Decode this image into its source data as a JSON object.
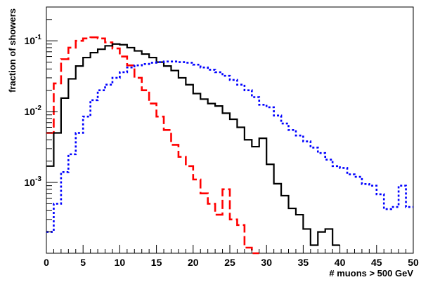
{
  "chart_data": {
    "type": "line",
    "style": "step-histogram",
    "xlabel": "# muons > 500 GeV",
    "ylabel": "fraction of showers",
    "xlim": [
      0,
      50
    ],
    "ylim": [
      0.0001,
      0.3
    ],
    "yscale": "log",
    "grid": false,
    "legend": "none",
    "x_ticks": [
      "0",
      "5",
      "10",
      "15",
      "20",
      "25",
      "30",
      "35",
      "40",
      "45",
      "50"
    ],
    "y_ticks": [
      {
        "base": "10",
        "exp": "-1",
        "value": 0.1
      },
      {
        "base": "10",
        "exp": "-2",
        "value": 0.01
      },
      {
        "base": "10",
        "exp": "-3",
        "value": 0.001
      }
    ],
    "series": [
      {
        "color": "#ff0000",
        "linestyle": "dashed",
        "x": [
          0,
          1,
          2,
          3,
          4,
          5,
          6,
          7,
          8,
          9,
          10,
          11,
          12,
          13,
          14,
          15,
          16,
          17,
          18,
          19,
          20,
          21,
          22,
          23,
          24,
          25,
          26,
          27,
          28
        ],
        "values": [
          0.005,
          0.025,
          0.055,
          0.08,
          0.1,
          0.108,
          0.112,
          0.108,
          0.095,
          0.078,
          0.06,
          0.045,
          0.03,
          0.02,
          0.013,
          0.0085,
          0.0055,
          0.0034,
          0.0023,
          0.0017,
          0.0011,
          0.0007,
          0.0005,
          0.00035,
          0.0008,
          0.0003,
          0.00025,
          0.00012,
          0.0001
        ]
      },
      {
        "color": "#000000",
        "linestyle": "solid",
        "x": [
          0,
          1,
          2,
          3,
          4,
          5,
          6,
          7,
          8,
          9,
          10,
          11,
          12,
          13,
          14,
          15,
          16,
          17,
          18,
          19,
          20,
          21,
          22,
          23,
          24,
          25,
          26,
          27,
          28,
          29,
          30,
          31,
          32,
          33,
          34,
          35,
          36,
          37,
          38,
          39
        ],
        "values": [
          0.0017,
          0.005,
          0.0155,
          0.029,
          0.044,
          0.058,
          0.068,
          0.076,
          0.085,
          0.09,
          0.088,
          0.08,
          0.072,
          0.065,
          0.058,
          0.05,
          0.044,
          0.038,
          0.03,
          0.024,
          0.018,
          0.015,
          0.013,
          0.012,
          0.0095,
          0.0078,
          0.006,
          0.004,
          0.0032,
          0.0042,
          0.0018,
          0.00096,
          0.00065,
          0.00043,
          0.00035,
          0.00022,
          0.00013,
          0.0002,
          0.00022,
          0.00013
        ]
      },
      {
        "color": "#0000ff",
        "linestyle": "dotted",
        "x": [
          0,
          1,
          2,
          3,
          4,
          5,
          6,
          7,
          8,
          9,
          10,
          11,
          12,
          13,
          14,
          15,
          16,
          17,
          18,
          19,
          20,
          21,
          22,
          23,
          24,
          25,
          26,
          27,
          28,
          29,
          30,
          31,
          32,
          33,
          34,
          35,
          36,
          37,
          38,
          39,
          40,
          41,
          42,
          43,
          44,
          45,
          46,
          47,
          48,
          49
        ],
        "values": [
          0.0002,
          0.0005,
          0.0014,
          0.0025,
          0.005,
          0.0085,
          0.0145,
          0.02,
          0.024,
          0.03,
          0.036,
          0.042,
          0.045,
          0.047,
          0.049,
          0.05,
          0.051,
          0.051,
          0.05,
          0.049,
          0.046,
          0.042,
          0.039,
          0.036,
          0.032,
          0.028,
          0.024,
          0.02,
          0.016,
          0.0125,
          0.0115,
          0.0088,
          0.0068,
          0.0055,
          0.0046,
          0.0038,
          0.0031,
          0.0026,
          0.0021,
          0.0017,
          0.0016,
          0.0013,
          0.0012,
          0.00095,
          0.0009,
          0.00068,
          0.00042,
          0.00045,
          0.0009,
          0.00045
        ]
      }
    ]
  }
}
